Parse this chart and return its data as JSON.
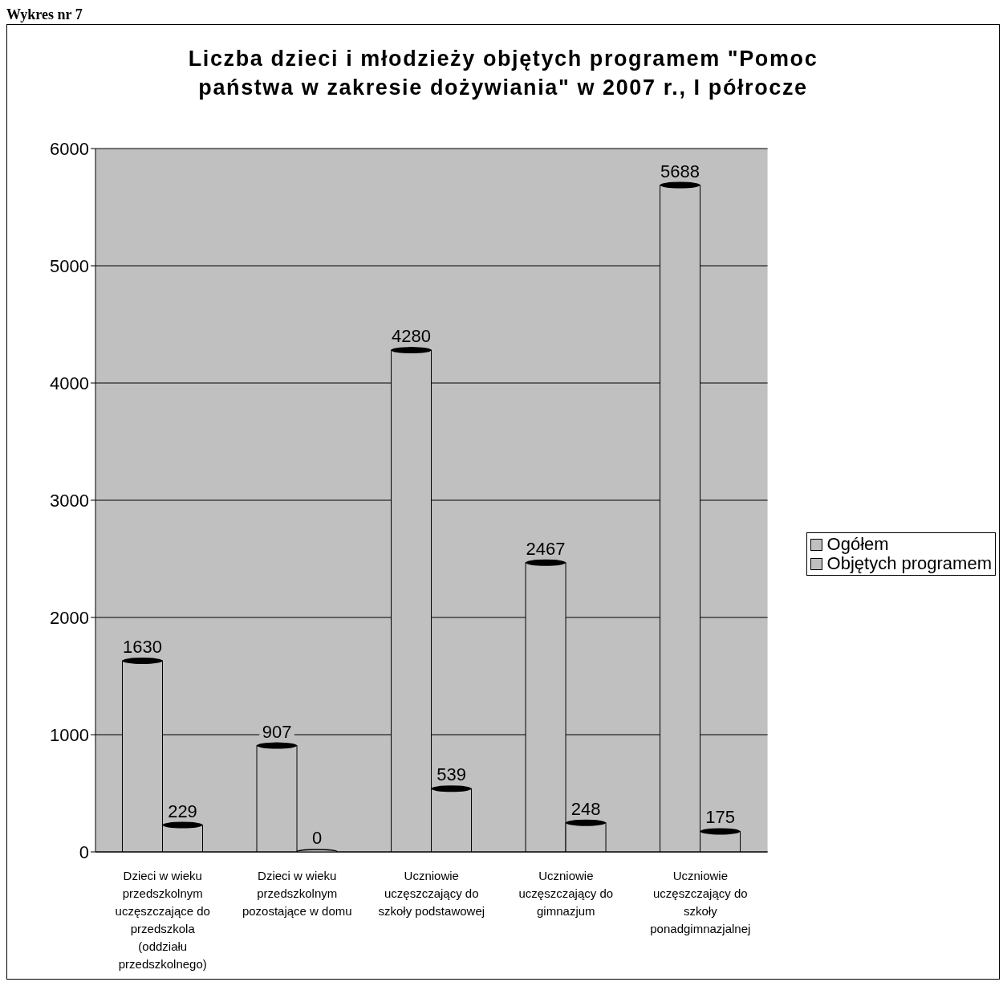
{
  "chart_data": {
    "type": "bar",
    "title": "Liczba dzieci i młodzieży objętych programem \"Pomoc państwa w zakresie dożywiania\" w 2007 r., I półrocze",
    "annotations": [
      "Wykres nr 7"
    ],
    "categories": [
      "Dzieci w wieku przedszkolnym uczęszczające do przedszkola (oddziału przedszkolnego)",
      "Dzieci w wieku przedszkolnym pozostające w domu",
      "Uczniowie uczęszczający do szkoły podstawowej",
      "Uczniowie uczęszczający do gimnazjum",
      "Uczniowie uczęszczający do szkoły ponadgimnazjalnej"
    ],
    "series": [
      {
        "name": "Ogółem",
        "color": "#c0c0c0",
        "values": [
          1630,
          907,
          4280,
          2467,
          5688
        ]
      },
      {
        "name": "Objętych programem",
        "color": "#c0c0c0",
        "values": [
          229,
          0,
          539,
          248,
          175
        ]
      }
    ],
    "ylim": [
      0,
      6000
    ],
    "yticks": [
      0,
      1000,
      2000,
      3000,
      4000,
      5000,
      6000
    ],
    "grid": "y",
    "legend": "right",
    "data_labels": true
  }
}
